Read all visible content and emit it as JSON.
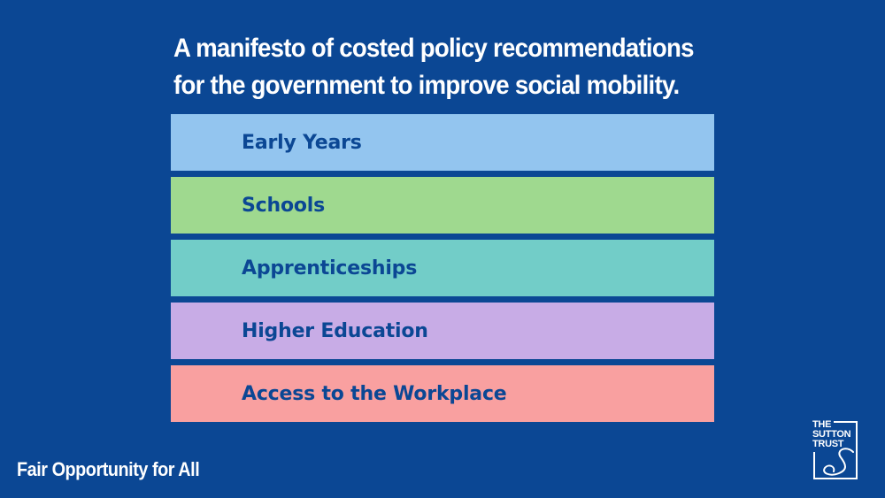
{
  "headline": {
    "line1": "A manifesto of costed policy recommendations",
    "line2": "for the government to improve social mobility."
  },
  "policy_areas": [
    {
      "label": "Early Years",
      "color": "#93c5ef"
    },
    {
      "label": "Schools",
      "color": "#9fd98f"
    },
    {
      "label": "Apprenticeships",
      "color": "#72cdc8"
    },
    {
      "label": "Higher Education",
      "color": "#c8ace6"
    },
    {
      "label": "Access to the Workplace",
      "color": "#f9a0a0"
    }
  ],
  "footer": {
    "tagline": "Fair Opportunity for All"
  },
  "logo": {
    "line1": "THE",
    "line2": "SUTTON",
    "line3": "TRUST"
  },
  "colors": {
    "background": "#0b4794",
    "text_on_band": "#0b4794"
  }
}
